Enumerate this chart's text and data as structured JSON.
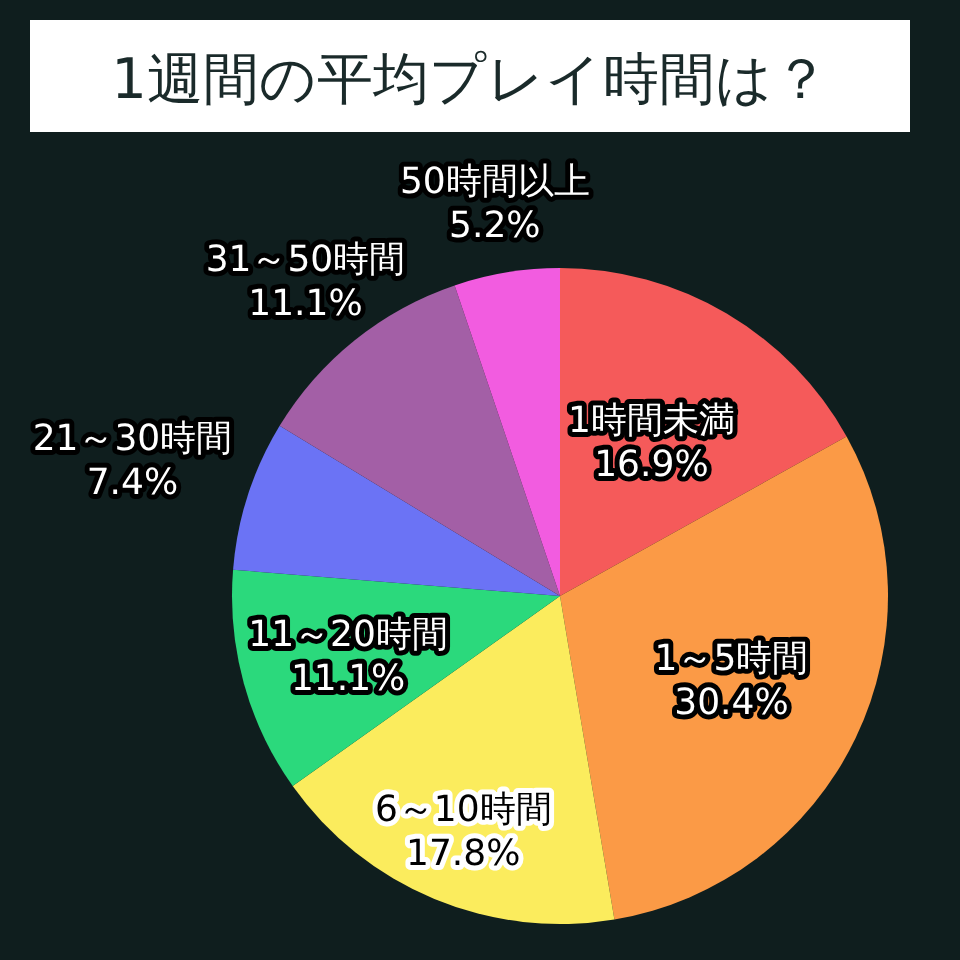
{
  "chart_data": {
    "type": "pie",
    "title": "1週間の平均プレイ時間は？",
    "categories": [
      "1時間未満",
      "1～5時間",
      "6～10時間",
      "11～20時間",
      "21～30時間",
      "31～50時間",
      "50時間以上"
    ],
    "values": [
      16.9,
      30.4,
      17.8,
      11.1,
      7.4,
      11.1,
      5.2
    ],
    "colors": [
      "#f55a5a",
      "#fb9a46",
      "#fbec5d",
      "#2bd97c",
      "#6b73f5",
      "#a35fa6",
      "#f25ce0"
    ],
    "value_labels": [
      "16.9%",
      "30.4%",
      "17.8%",
      "11.1%",
      "7.4%",
      "11.1%",
      "5.2%"
    ]
  }
}
